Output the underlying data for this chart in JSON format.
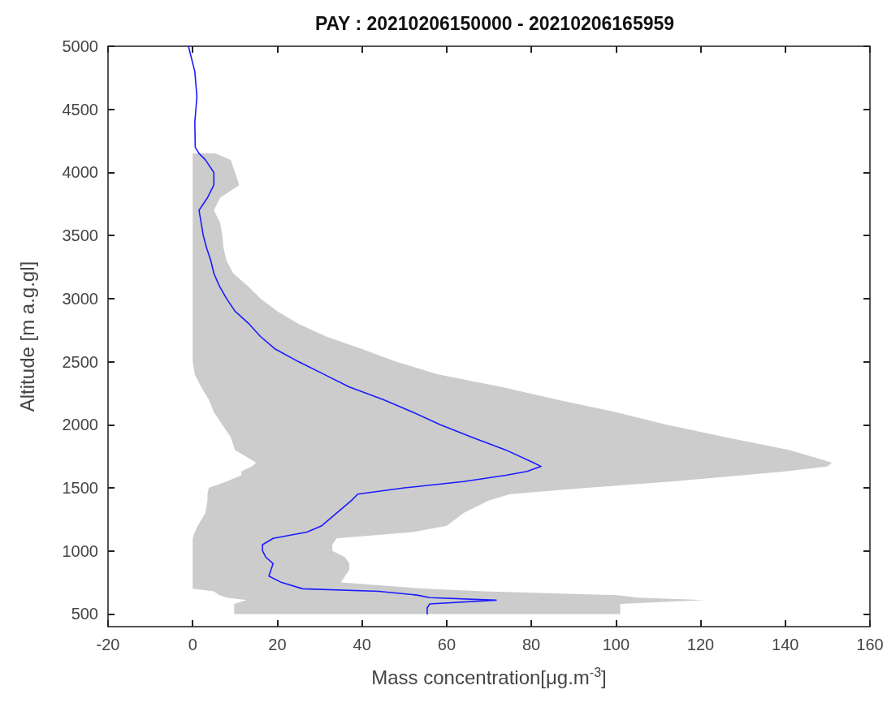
{
  "chart_data": {
    "type": "line",
    "orientation": "horizontal",
    "title": "PAY : 20210206150000 - 20210206165959",
    "xlabel": "Mass concentration[μg.m$^{-3}$]",
    "ylabel": "Altitude [m a.g.gl]",
    "xlim": [
      -20,
      160
    ],
    "xticks": [
      -20,
      0,
      20,
      40,
      60,
      80,
      100,
      120,
      140,
      160
    ],
    "ylim": [
      400,
      5000
    ],
    "yticks": [
      500,
      1000,
      1500,
      2000,
      2500,
      3000,
      3500,
      4000,
      4500,
      5000
    ],
    "grid": false,
    "marker": "none",
    "line_style": "solid",
    "series": [
      {
        "color": "#1a1aff",
        "x": [
          5000,
          4800,
          4600,
          4400,
          4200,
          4150,
          4100,
          4000,
          3900,
          3800,
          3700,
          3600,
          3500,
          3400,
          3300,
          3200,
          3100,
          3000,
          2900,
          2800,
          2700,
          2600,
          2500,
          2400,
          2300,
          2200,
          2100,
          2000,
          1900,
          1800,
          1700,
          1670,
          1630,
          1600,
          1550,
          1500,
          1450,
          1400,
          1300,
          1200,
          1150,
          1100,
          1050,
          1000,
          950,
          900,
          850,
          800,
          750,
          700,
          680,
          650,
          630,
          610,
          580,
          550,
          500
        ],
        "values": [
          -1,
          0.5,
          1,
          0.5,
          0.6,
          1.5,
          3,
          5,
          5,
          3.5,
          1.5,
          2,
          2.5,
          3.3,
          4.3,
          5,
          6.3,
          8,
          10,
          13.3,
          16,
          19.5,
          25,
          31,
          37,
          45,
          52,
          58.5,
          66,
          74,
          80.5,
          82.3,
          79,
          74,
          64,
          50,
          39,
          37.5,
          34,
          30.5,
          27,
          19,
          16.5,
          16.5,
          17.3,
          19,
          18.5,
          18,
          21,
          26,
          44,
          53,
          56,
          71.7,
          56,
          55.4,
          55.4
        ],
        "upper": [
          null,
          null,
          null,
          null,
          null,
          5.4,
          9,
          10,
          11,
          6.5,
          5,
          6.5,
          7,
          7.3,
          8,
          9.6,
          13,
          16,
          20,
          25,
          31.5,
          40,
          48,
          58,
          73,
          86,
          100,
          112,
          126,
          141,
          151,
          150,
          140,
          130,
          113,
          93,
          75,
          70,
          64,
          60,
          52,
          34,
          33,
          33,
          36,
          37,
          37,
          36,
          35,
          55,
          69,
          100,
          105,
          121,
          101,
          101,
          101
        ],
        "lower": [
          null,
          null,
          null,
          null,
          null,
          0,
          0,
          0,
          0,
          0,
          0,
          0,
          0,
          0,
          0,
          0,
          0,
          0,
          0,
          0,
          0,
          0,
          0,
          0.5,
          2,
          3.8,
          5,
          7,
          9,
          10,
          15,
          14,
          11.5,
          11.5,
          8,
          3.8,
          3.5,
          3.5,
          3,
          1.2,
          0.5,
          0,
          0,
          0,
          0,
          0,
          0,
          0,
          0,
          0,
          5,
          6.3,
          8,
          12.7,
          9.8,
          9.8,
          9.8
        ]
      }
    ]
  }
}
